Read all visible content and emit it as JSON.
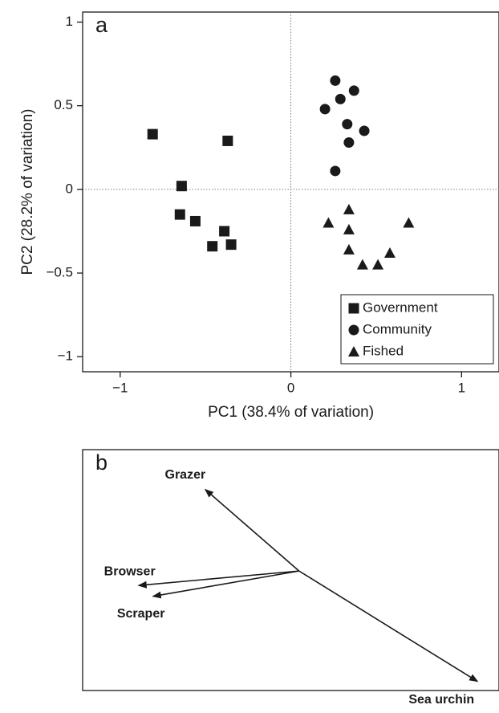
{
  "chart_data": [
    {
      "type": "scatter",
      "panel_label": "a",
      "x_label": "PC1 (38.4% of variation)",
      "y_label": "PC2 (28.2% of variation)",
      "xlim": [
        -1.22,
        1.21
      ],
      "ylim": [
        -1.09,
        1.06
      ],
      "xticks": [
        {
          "value": -1,
          "label": "−1"
        },
        0,
        1
      ],
      "yticks": [
        {
          "value": -1,
          "label": "−1"
        },
        {
          "value": -0.5,
          "label": "−0.5"
        },
        0,
        0.5,
        1
      ],
      "zero_lines": true,
      "legend": "lower right",
      "series": [
        {
          "name": "Government",
          "marker": "square",
          "color": "#1a1a1a",
          "x": [
            -0.81,
            -0.37,
            -0.64,
            -0.65,
            -0.56,
            -0.39,
            -0.46,
            -0.35
          ],
          "values": [
            0.33,
            0.29,
            0.02,
            -0.15,
            -0.19,
            -0.25,
            -0.34,
            -0.33
          ]
        },
        {
          "name": "Community",
          "marker": "circle",
          "color": "#1a1a1a",
          "x": [
            0.26,
            0.37,
            0.2,
            0.29,
            0.33,
            0.43,
            0.34,
            0.26
          ],
          "values": [
            0.65,
            0.59,
            0.48,
            0.54,
            0.39,
            0.35,
            0.28,
            0.11
          ]
        },
        {
          "name": "Fished",
          "marker": "triangle",
          "color": "#1a1a1a",
          "x": [
            0.22,
            0.34,
            0.34,
            0.34,
            0.42,
            0.51,
            0.58,
            0.69
          ],
          "values": [
            -0.2,
            -0.12,
            -0.24,
            -0.36,
            -0.45,
            -0.45,
            -0.38,
            -0.2
          ]
        }
      ]
    },
    {
      "type": "biplot",
      "panel_label": "b",
      "xlim": [
        -1.2,
        1.1
      ],
      "ylim": [
        -0.66,
        0.67
      ],
      "color": "#1a1a1a",
      "vectors": [
        {
          "name": "Grazer",
          "x": -0.52,
          "y": 0.45
        },
        {
          "name": "Browser",
          "x": -0.89,
          "y": -0.08
        },
        {
          "name": "Scraper",
          "x": -0.81,
          "y": -0.14
        },
        {
          "name": "Sea urchin",
          "x": 0.99,
          "y": -0.61
        }
      ]
    }
  ]
}
